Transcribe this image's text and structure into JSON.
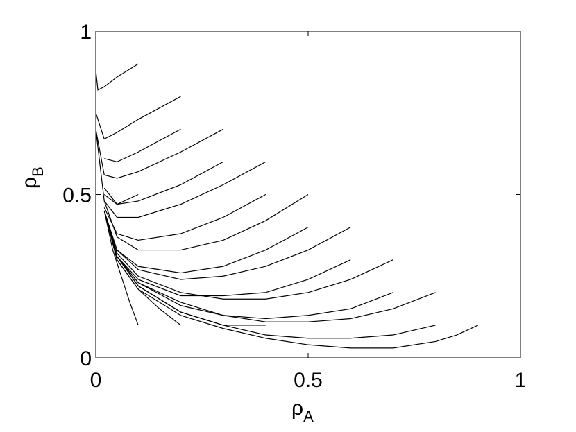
{
  "chart_data": {
    "type": "line",
    "xlabel": {
      "symbol": "ρ",
      "subscript": "A"
    },
    "ylabel": {
      "symbol": "ρ",
      "subscript": "B"
    },
    "xlim": [
      0,
      1
    ],
    "ylim": [
      0,
      1
    ],
    "xticks": [
      0,
      0.5,
      1
    ],
    "yticks": [
      0,
      0.5,
      1
    ],
    "color": "#000000",
    "series": [
      {
        "x": [
          0.1,
          0.05,
          0.02,
          0.005,
          0
        ],
        "values": [
          0.9,
          0.86,
          0.83,
          0.82,
          0.88
        ]
      },
      {
        "x": [
          0.2,
          0.1,
          0.05,
          0.02,
          0
        ],
        "values": [
          0.8,
          0.73,
          0.69,
          0.67,
          0.75
        ]
      },
      {
        "x": [
          0.3,
          0.2,
          0.1,
          0.05,
          0.02,
          0
        ],
        "values": [
          0.7,
          0.63,
          0.57,
          0.55,
          0.56,
          0.7
        ]
      },
      {
        "x": [
          0.4,
          0.3,
          0.2,
          0.1,
          0.05,
          0.02,
          0
        ],
        "values": [
          0.6,
          0.53,
          0.47,
          0.43,
          0.43,
          0.48,
          0.7
        ]
      },
      {
        "x": [
          0.5,
          0.4,
          0.3,
          0.2,
          0.1,
          0.05,
          0.02
        ],
        "values": [
          0.5,
          0.42,
          0.36,
          0.33,
          0.33,
          0.37,
          0.48
        ]
      },
      {
        "x": [
          0.6,
          0.5,
          0.4,
          0.3,
          0.2,
          0.1,
          0.05,
          0.02
        ],
        "values": [
          0.4,
          0.33,
          0.28,
          0.25,
          0.24,
          0.27,
          0.33,
          0.45
        ]
      },
      {
        "x": [
          0.7,
          0.6,
          0.5,
          0.4,
          0.3,
          0.2,
          0.1,
          0.05,
          0.02
        ],
        "values": [
          0.3,
          0.24,
          0.2,
          0.18,
          0.18,
          0.2,
          0.25,
          0.32,
          0.45
        ]
      },
      {
        "x": [
          0.8,
          0.7,
          0.6,
          0.5,
          0.4,
          0.3,
          0.2,
          0.1,
          0.05,
          0.02
        ],
        "values": [
          0.2,
          0.15,
          0.12,
          0.11,
          0.11,
          0.13,
          0.17,
          0.23,
          0.31,
          0.45
        ]
      },
      {
        "x": [
          0.9,
          0.85,
          0.8,
          0.7,
          0.6,
          0.5,
          0.4,
          0.3,
          0.2,
          0.1,
          0.05,
          0.02
        ],
        "values": [
          0.1,
          0.07,
          0.05,
          0.03,
          0.03,
          0.04,
          0.06,
          0.09,
          0.13,
          0.21,
          0.3,
          0.45
        ]
      },
      {
        "x": [
          0.8,
          0.7,
          0.6,
          0.5,
          0.4,
          0.3,
          0.2,
          0.1,
          0.05
        ],
        "values": [
          0.1,
          0.07,
          0.06,
          0.06,
          0.07,
          0.1,
          0.14,
          0.22,
          0.31
        ]
      },
      {
        "x": [
          0.7,
          0.6,
          0.5,
          0.4,
          0.3,
          0.2,
          0.1,
          0.05
        ],
        "values": [
          0.2,
          0.15,
          0.13,
          0.12,
          0.13,
          0.16,
          0.23,
          0.31
        ]
      },
      {
        "x": [
          0.6,
          0.5,
          0.4,
          0.3,
          0.2,
          0.1,
          0.05
        ],
        "values": [
          0.3,
          0.24,
          0.2,
          0.19,
          0.19,
          0.24,
          0.31
        ]
      },
      {
        "x": [
          0.5,
          0.4,
          0.3,
          0.2,
          0.1,
          0.05
        ],
        "values": [
          0.4,
          0.33,
          0.28,
          0.26,
          0.28,
          0.33
        ]
      },
      {
        "x": [
          0.4,
          0.3,
          0.2,
          0.1,
          0.05,
          0.02
        ],
        "values": [
          0.5,
          0.43,
          0.38,
          0.36,
          0.38,
          0.46
        ]
      },
      {
        "x": [
          0.3,
          0.2,
          0.1,
          0.05,
          0.02
        ],
        "values": [
          0.6,
          0.53,
          0.48,
          0.47,
          0.52
        ]
      },
      {
        "x": [
          0.2,
          0.1,
          0.05,
          0.02
        ],
        "values": [
          0.7,
          0.63,
          0.6,
          0.61
        ]
      },
      {
        "x": [
          0.1,
          0.08,
          0.06,
          0.04,
          0.02
        ],
        "values": [
          0.1,
          0.17,
          0.25,
          0.33,
          0.45
        ]
      },
      {
        "x": [
          0.2,
          0.15,
          0.1,
          0.05,
          0.02
        ],
        "values": [
          0.1,
          0.15,
          0.21,
          0.3,
          0.45
        ]
      },
      {
        "x": [
          0.4,
          0.3,
          0.2,
          0.1,
          0.05
        ],
        "values": [
          0.1,
          0.1,
          0.14,
          0.22,
          0.31
        ]
      },
      {
        "x": [
          0.1,
          0.05,
          0.02
        ],
        "values": [
          0.5,
          0.47,
          0.5
        ]
      }
    ]
  }
}
